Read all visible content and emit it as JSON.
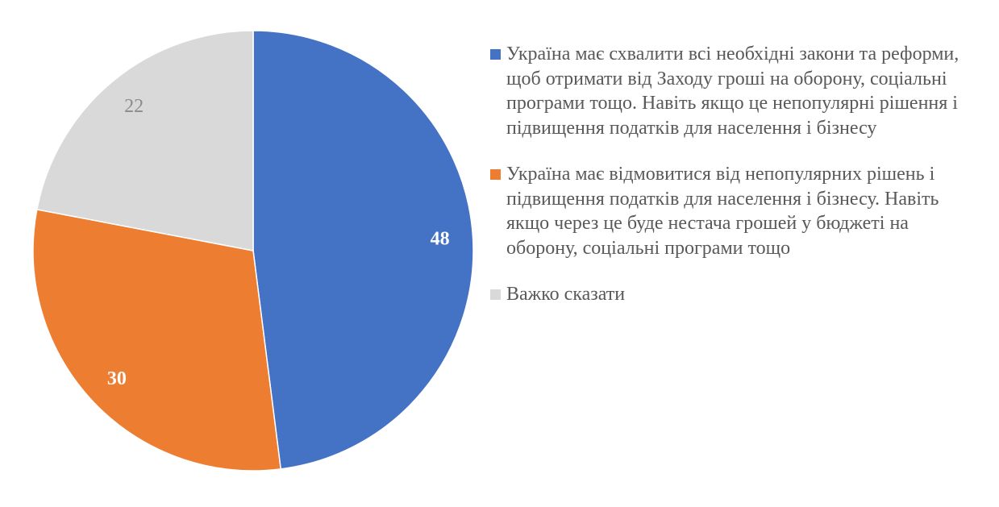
{
  "chart_data": {
    "type": "pie",
    "start_angle_deg": 0,
    "direction": "clockwise",
    "legend_position": "right",
    "slices": [
      {
        "label": "Україна має схвалити всі необхідні закони та реформи, щоб отримати від Заходу гроші на оборону, соціальні програми тощо. Навіть якщо це непопулярні рішення і підвищення податків для населення і бізнесу",
        "value": 48,
        "value_label": "48",
        "color": "#4472C4",
        "label_color": "#FFFFFF",
        "label_weight": "bold"
      },
      {
        "label": "Україна має відмовитися від непопулярних рішень і підвищення податків для населення і бізнесу. Навіть якщо через це буде нестача грошей у бюджеті на оборону, соціальні програми тощо",
        "value": 30,
        "value_label": "30",
        "color": "#ED7D31",
        "label_color": "#FFFFFF",
        "label_weight": "bold"
      },
      {
        "label": "Важко сказати",
        "value": 22,
        "value_label": "22",
        "color": "#D9D9D9",
        "label_color": "#8C8C8C",
        "label_weight": "normal"
      }
    ]
  }
}
